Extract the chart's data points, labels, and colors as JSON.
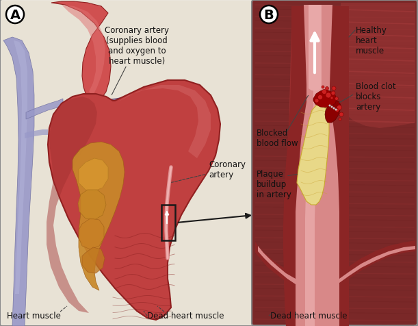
{
  "bg_color": "#f0ebe0",
  "border_color": "#888888",
  "panel_b_bg": "#8b3535",
  "panel_a_bg": "#e8e0d0",
  "heart_red": "#c04040",
  "heart_dark": "#902020",
  "heart_mid": "#b03030",
  "heart_light": "#d06060",
  "heart_highlight": "#e08080",
  "dead_orange": "#c8882a",
  "dead_dark": "#a06018",
  "aorta_red": "#d05050",
  "blue_vessel": "#9090c8",
  "blue_dark": "#6070a8",
  "purple_vessel": "#806090",
  "artery_wall_dark": "#8b2525",
  "artery_wall_mid": "#b03535",
  "artery_lumen": "#e8a0a0",
  "artery_lumen_light": "#f0c0c0",
  "plaque_fill": "#e8d888",
  "plaque_edge": "#c8a830",
  "clot_dark": "#8b0000",
  "clot_red": "#bb1515",
  "muscle_bg_dark": "#6a2020",
  "muscle_bg_mid": "#7a2828",
  "white": "#ffffff",
  "black": "#000000",
  "label_color": "#111111",
  "line_color": "#444444",
  "box_color": "#1a1a1a",
  "annotations": {
    "coronary_artery_long": "Coronary artery\n(supplies blood\nand oxygen to\nheart muscle)",
    "coronary_artery": "Coronary\nartery",
    "heart_muscle": "Heart muscle",
    "dead_heart_muscle": "Dead heart muscle",
    "healthy_heart_muscle": "Healthy\nheart\nmuscle",
    "blood_clot": "Blood clot\nblocks\nartery",
    "blocked_blood_flow": "Blocked\nblood flow",
    "plaque_buildup": "Plaque\nbuildup\nin artery"
  },
  "panel_A": "A",
  "panel_B": "B"
}
